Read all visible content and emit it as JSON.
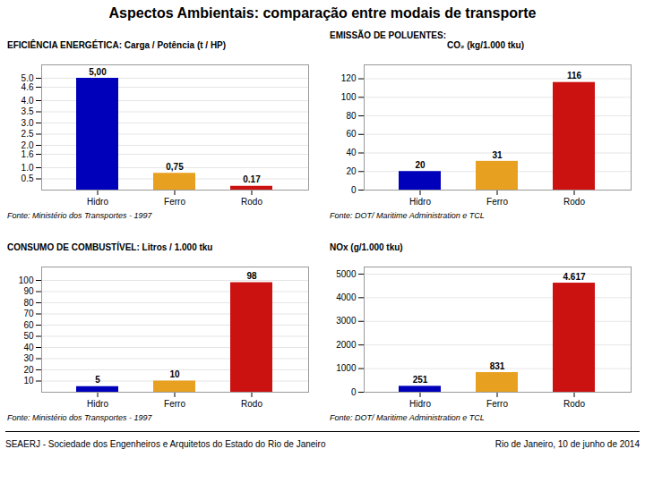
{
  "title": "Aspectos Ambientais: comparação entre modais de transporte",
  "annotations": [
    "SEAERJ - Sociedade dos Engenheiros e Arquitetos do Estado do Rio de Janeiro",
    "Rio de Janeiro, 10 de junho de 2014"
  ],
  "chart_data": [
    {
      "type": "bar",
      "title": "EFICIÊNCIA ENERGÉTICA: Carga / Potência (t / HP)",
      "categories": [
        "Hidro",
        "Ferro",
        "Rodo"
      ],
      "values": [
        5.0,
        0.75,
        0.17
      ],
      "colors": [
        "#0000bb",
        "#e8a020",
        "#cc1111"
      ],
      "ylim": [
        0,
        5.6
      ],
      "yticks": [
        0.5,
        {
          "value": 1,
          "label": "1.0"
        },
        1.6,
        {
          "value": 2,
          "label": "2.0"
        },
        2.5,
        {
          "value": 3,
          "label": "3.0"
        },
        3.5,
        {
          "value": 4,
          "label": "4.0"
        },
        4.6,
        {
          "value": 5,
          "label": "5.0"
        }
      ],
      "grid": true,
      "data_labels": true,
      "value_labels": [
        "5,00",
        "0,75",
        "0.17"
      ],
      "annotations": [
        "Fonte: Ministério dos Transportes - 1997"
      ]
    },
    {
      "type": "bar",
      "title": "EMISSÃO DE POLUENTES:",
      "subtitle": "CO₂ (kg/1.000 tku)",
      "categories": [
        "Hidro",
        "Ferro",
        "Rodo"
      ],
      "values": [
        20,
        31,
        116
      ],
      "colors": [
        "#0000bb",
        "#e8a020",
        "#cc1111"
      ],
      "ylim": [
        0,
        135
      ],
      "yticks": [
        0,
        20,
        40,
        60,
        80,
        100,
        120
      ],
      "grid": true,
      "data_labels": true,
      "annotations": [
        "Fonte: DOT/ Maritime Administration e TCL"
      ]
    },
    {
      "type": "bar",
      "title": "CONSUMO DE COMBUSTÍVEL: Litros / 1.000 tku",
      "categories": [
        "Hidro",
        "Ferro",
        "Rodo"
      ],
      "values": [
        5,
        10,
        98
      ],
      "colors": [
        "#0000bb",
        "#e8a020",
        "#cc1111"
      ],
      "ylim": [
        0,
        112
      ],
      "yticks": [
        10,
        20,
        30,
        40,
        50,
        60,
        70,
        80,
        90,
        100
      ],
      "grid": true,
      "data_labels": true,
      "annotations": [
        "Fonte: Ministério dos Transportes - 1997"
      ]
    },
    {
      "type": "bar",
      "title": "NOx (g/1.000 tku)",
      "categories": [
        "Hidro",
        "Ferro",
        "Rodo"
      ],
      "values": [
        251,
        831,
        4617
      ],
      "colors": [
        "#0000bb",
        "#e8a020",
        "#cc1111"
      ],
      "ylim": [
        0,
        5300
      ],
      "yticks": [
        0,
        1000,
        2000,
        3000,
        4000,
        5000
      ],
      "grid": true,
      "data_labels": true,
      "value_labels": [
        "251",
        "831",
        "4.617"
      ],
      "annotations": [
        "Fonte: DOT/ Maritime Administration e TCL"
      ]
    }
  ]
}
